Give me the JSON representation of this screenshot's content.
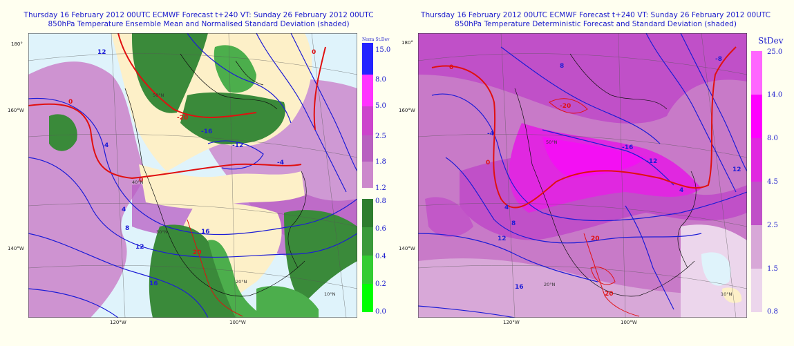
{
  "left": {
    "title_line1": "Thursday 16 February 2012 00UTC ECMWF Forecast t+240   VT: Sunday 26 February 2012 00UTC",
    "title_line2": "850hPa Temperature Ensemble Mean and Normalised Standard Deviation (shaded)",
    "legend_title": "Norm St.Dev",
    "legend_ticks": [
      "15.0",
      "8.0",
      "5.0",
      "2.5",
      "1.8",
      "1.2",
      "0.8",
      "0.6",
      "0.4",
      "0.2",
      "0.0"
    ],
    "lon_labels": [
      "120°W",
      "100°W"
    ],
    "lat_side_labels": [
      "180°",
      "160°W",
      "140°W"
    ],
    "grid_labels": [
      "50°N",
      "40°N",
      "30°N",
      "20°N",
      "10°N"
    ],
    "contour_labels": [
      "0",
      "0",
      "0",
      "-4",
      "-12",
      "-16",
      "-20",
      "4",
      "4",
      "8",
      "12",
      "12",
      "16",
      "16",
      "20"
    ],
    "colors": {
      "ocean": "#dff3fb",
      "land_pale": "#fdf0c8",
      "purple_light": "#cc88cc",
      "purple_mid": "#b85cc4",
      "magenta": "#ff33ff",
      "blue": "#2323ff",
      "green_dark": "#3a8a3a",
      "green_mid": "#4cae4c",
      "green_bright": "#00ff00",
      "contour_blue": "#1c1cd6",
      "contour_red": "#e01010"
    }
  },
  "right": {
    "title_line1": "Thursday 16 February 2012 00UTC ECMWF Forecast t+240   VT: Sunday 26 February 2012 00UTC",
    "title_line2": "850hPa Temperature Deterministic Forecast and Standard Deviation (shaded)",
    "legend_title": "StDev",
    "legend_ticks": [
      "25.0",
      "14.0",
      "8.0",
      "4.5",
      "2.5",
      "1.5",
      "0.8"
    ],
    "lon_labels": [
      "120°W",
      "100°W"
    ],
    "lat_side_labels": [
      "180°",
      "160°W",
      "140°W"
    ],
    "grid_labels": [
      "50°N",
      "20°N",
      "10°N"
    ],
    "contour_labels": [
      "0",
      "0",
      "-4",
      "-8",
      "-12",
      "-16",
      "-20",
      "4",
      "4",
      "8",
      "8",
      "12",
      "12",
      "16",
      "20",
      "20"
    ],
    "colors": {
      "pale": "#ecd6ec",
      "light": "#d8a8d8",
      "mid": "#c87ac8",
      "deep": "#c050c8",
      "magenta": "#e028e0",
      "hot": "#ff00ff",
      "top": "#ff66ff",
      "ocean": "#dff3fb",
      "contour_blue": "#1c1cd6",
      "contour_red": "#e01010"
    }
  }
}
